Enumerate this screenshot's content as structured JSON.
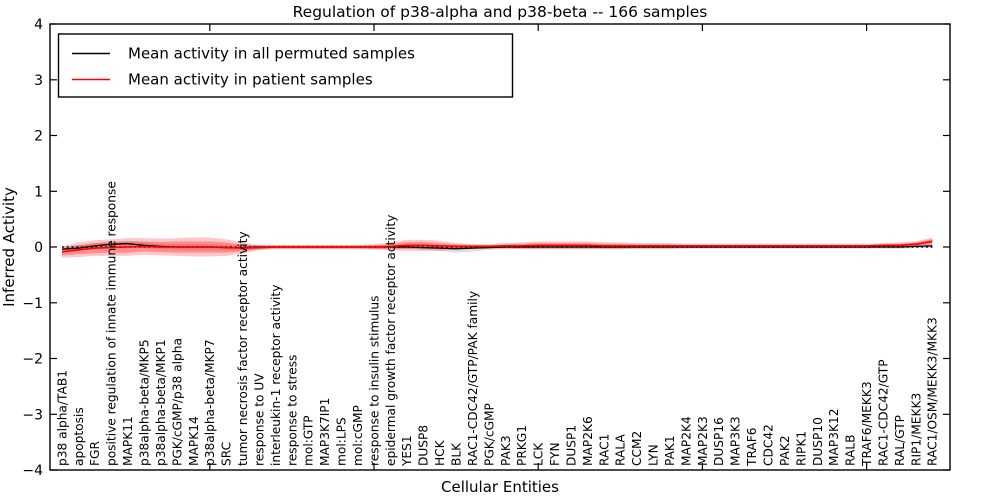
{
  "title": "Regulation of p38-alpha and p38-beta -- 166 samples",
  "axes": {
    "ylabel": "Inferred Activity",
    "xlabel": "Cellular Entities",
    "y_tick_values": [
      4,
      3,
      2,
      1,
      0,
      -1,
      -2,
      -3,
      -4
    ],
    "y_tick_labels": [
      "4",
      "3",
      "2",
      "1",
      "0",
      "−1",
      "−2",
      "−3",
      "−4"
    ]
  },
  "legend": {
    "entries": [
      {
        "label": "Mean activity in all permuted samples",
        "color": "#000000"
      },
      {
        "label": "Mean activity in patient samples",
        "color": "#ff0000"
      }
    ]
  },
  "colors": {
    "patient_line": "#ff0000",
    "permuted_line": "#000000",
    "patient_band": "#ff0000",
    "permuted_band": "#909090",
    "zero_line": "#000000",
    "frame": "#000000"
  },
  "chart_data": {
    "type": "line",
    "title": "Regulation of p38-alpha and p38-beta -- 166 samples",
    "xlabel": "Cellular Entities",
    "ylabel": "Inferred Activity",
    "ylim": [
      -4,
      4
    ],
    "grid": false,
    "legend_position": "upper left",
    "zero_reference_line": true,
    "x_major_tick_indices": [
      9,
      19,
      29,
      39,
      49
    ],
    "categories": [
      "p38 alpha/TAB1",
      "apoptosis",
      "FGR",
      "positive regulation of innate immune response",
      "MAPK11",
      "p38alpha-beta/MKP5",
      "p38alpha-beta/MKP1",
      "PGK/cGMP/p38 alpha",
      "MAPK14",
      "p38alpha-beta/MKP7",
      "SRC",
      "tumor necrosis factor receptor activity",
      "response to UV",
      "interleukin-1 receptor activity",
      "response to stress",
      "mol:GTP",
      "MAP3K7IP1",
      "mol:LPS",
      "mol:cGMP",
      "response to insulin stimulus",
      "epidermal growth factor receptor activity",
      "YES1",
      "DUSP8",
      "HCK",
      "BLK",
      "RAC1-CDC42/GTP/PAK family",
      "PGK/cGMP",
      "PAK3",
      "PRKG1",
      "LCK",
      "FYN",
      "DUSP1",
      "MAP2K6",
      "RAC1",
      "RALA",
      "CCM2",
      "LYN",
      "PAK1",
      "MAP2K4",
      "MAP2K3",
      "DUSP16",
      "MAP3K3",
      "TRAF6",
      "CDC42",
      "PAK2",
      "RIPK1",
      "DUSP10",
      "MAP3K12",
      "RALB",
      "TRAF6/MEKK3",
      "RAC1-CDC42/GTP",
      "RAL/GTP",
      "RIP1/MEKK3",
      "RAC1/OSM/MEKK3/MKK3"
    ],
    "series": [
      {
        "name": "Mean activity in all permuted samples",
        "color": "#000000",
        "values": [
          -0.04,
          -0.02,
          0.02,
          0.05,
          0.06,
          0.03,
          0.01,
          0.0,
          0.0,
          0.0,
          -0.01,
          -0.01,
          0.0,
          0.0,
          0.0,
          0.0,
          0.0,
          0.0,
          0.0,
          0.0,
          0.0,
          0.0,
          -0.01,
          -0.02,
          -0.03,
          -0.02,
          -0.01,
          0.0,
          0.0,
          0.0,
          0.0,
          0.0,
          0.0,
          0.0,
          0.0,
          0.0,
          0.0,
          0.0,
          0.0,
          0.0,
          0.0,
          0.0,
          0.0,
          0.0,
          0.0,
          0.0,
          0.0,
          0.0,
          0.0,
          0.0,
          0.0,
          0.0,
          0.01,
          0.02
        ]
      },
      {
        "name": "Mean activity in patient samples",
        "color": "#ff0000",
        "values": [
          -0.09,
          -0.05,
          -0.02,
          -0.01,
          0.0,
          0.01,
          0.0,
          0.0,
          0.0,
          0.0,
          -0.01,
          -0.02,
          -0.01,
          0.0,
          0.0,
          0.0,
          0.0,
          0.0,
          0.0,
          0.0,
          0.01,
          0.03,
          0.03,
          0.02,
          0.01,
          0.01,
          0.01,
          0.02,
          0.02,
          0.03,
          0.03,
          0.03,
          0.03,
          0.02,
          0.02,
          0.02,
          0.02,
          0.02,
          0.02,
          0.02,
          0.02,
          0.02,
          0.02,
          0.02,
          0.02,
          0.02,
          0.02,
          0.02,
          0.02,
          0.02,
          0.03,
          0.03,
          0.05,
          0.1
        ]
      }
    ],
    "bands": [
      {
        "name": "patient spread outer",
        "around_series": 1,
        "half_widths": [
          0.1,
          0.13,
          0.14,
          0.15,
          0.16,
          0.15,
          0.15,
          0.16,
          0.17,
          0.17,
          0.15,
          0.1,
          0.05,
          0.04,
          0.04,
          0.04,
          0.04,
          0.04,
          0.04,
          0.05,
          0.07,
          0.1,
          0.1,
          0.09,
          0.06,
          0.04,
          0.04,
          0.05,
          0.06,
          0.07,
          0.07,
          0.07,
          0.07,
          0.06,
          0.06,
          0.05,
          0.05,
          0.05,
          0.04,
          0.04,
          0.04,
          0.04,
          0.04,
          0.04,
          0.04,
          0.04,
          0.04,
          0.04,
          0.04,
          0.04,
          0.04,
          0.05,
          0.05,
          0.07
        ]
      },
      {
        "name": "patient spread inner",
        "around_series": 1,
        "half_widths": [
          0.06,
          0.08,
          0.09,
          0.09,
          0.1,
          0.09,
          0.09,
          0.1,
          0.1,
          0.1,
          0.09,
          0.06,
          0.03,
          0.02,
          0.02,
          0.02,
          0.02,
          0.02,
          0.02,
          0.03,
          0.04,
          0.06,
          0.06,
          0.05,
          0.04,
          0.02,
          0.02,
          0.03,
          0.04,
          0.04,
          0.04,
          0.04,
          0.04,
          0.04,
          0.04,
          0.03,
          0.03,
          0.03,
          0.02,
          0.02,
          0.02,
          0.02,
          0.02,
          0.02,
          0.02,
          0.02,
          0.02,
          0.02,
          0.02,
          0.02,
          0.02,
          0.03,
          0.03,
          0.04
        ]
      },
      {
        "name": "permuted spread",
        "around_series": 0,
        "half_widths": [
          0.05,
          0.05,
          0.05,
          0.05,
          0.05,
          0.05,
          0.05,
          0.05,
          0.05,
          0.05,
          0.05,
          0.04,
          0.03,
          0.03,
          0.03,
          0.03,
          0.03,
          0.03,
          0.03,
          0.03,
          0.03,
          0.03,
          0.04,
          0.05,
          0.07,
          0.06,
          0.04,
          0.03,
          0.03,
          0.03,
          0.03,
          0.03,
          0.03,
          0.03,
          0.03,
          0.03,
          0.03,
          0.03,
          0.03,
          0.03,
          0.03,
          0.03,
          0.03,
          0.03,
          0.03,
          0.03,
          0.03,
          0.03,
          0.03,
          0.03,
          0.03,
          0.03,
          0.03,
          0.04
        ]
      }
    ]
  }
}
